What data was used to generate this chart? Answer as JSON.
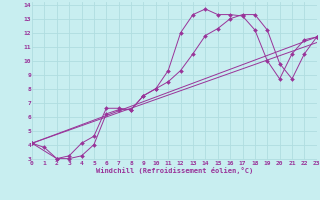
{
  "background_color": "#c8eef0",
  "grid_color": "#b0dde0",
  "line_color": "#993399",
  "xlabel": "Windchill (Refroidissement éolien,°C)",
  "xlim": [
    0,
    23
  ],
  "ylim": [
    3,
    14
  ],
  "xticks": [
    0,
    1,
    2,
    3,
    4,
    5,
    6,
    7,
    8,
    9,
    10,
    11,
    12,
    13,
    14,
    15,
    16,
    17,
    18,
    19,
    20,
    21,
    22,
    23
  ],
  "yticks": [
    3,
    4,
    5,
    6,
    7,
    8,
    9,
    10,
    11,
    12,
    13,
    14
  ],
  "series": [
    {
      "x": [
        0,
        1,
        2,
        3,
        4,
        5,
        6,
        7,
        8,
        9,
        10,
        11,
        12,
        13,
        14,
        15,
        16,
        17,
        18,
        19,
        20,
        21,
        22,
        23
      ],
      "y": [
        4.1,
        3.8,
        3.0,
        3.0,
        3.2,
        4.0,
        6.2,
        6.5,
        6.5,
        7.5,
        8.0,
        9.3,
        12.0,
        13.3,
        13.7,
        13.3,
        13.3,
        13.2,
        12.2,
        10.0,
        8.7,
        10.5,
        11.5,
        11.7
      ],
      "marker": true
    },
    {
      "x": [
        0,
        2,
        3,
        4,
        5,
        6,
        7,
        8,
        9,
        10,
        11,
        12,
        13,
        14,
        15,
        16,
        17,
        18,
        19,
        20,
        21,
        22,
        23
      ],
      "y": [
        4.1,
        3.0,
        3.2,
        4.1,
        4.6,
        6.6,
        6.6,
        6.5,
        7.5,
        8.0,
        8.5,
        9.3,
        10.5,
        11.8,
        12.3,
        13.0,
        13.3,
        13.3,
        12.2,
        9.8,
        8.7,
        10.5,
        11.7
      ],
      "marker": true
    },
    {
      "x": [
        0,
        23
      ],
      "y": [
        4.1,
        11.7
      ],
      "marker": false
    },
    {
      "x": [
        0,
        23
      ],
      "y": [
        4.1,
        11.3
      ],
      "marker": false
    }
  ],
  "figsize": [
    3.2,
    2.0
  ],
  "dpi": 100,
  "tick_fontsize": 4.5,
  "xlabel_fontsize": 5.0,
  "linewidth": 0.7,
  "markersize": 2.0
}
